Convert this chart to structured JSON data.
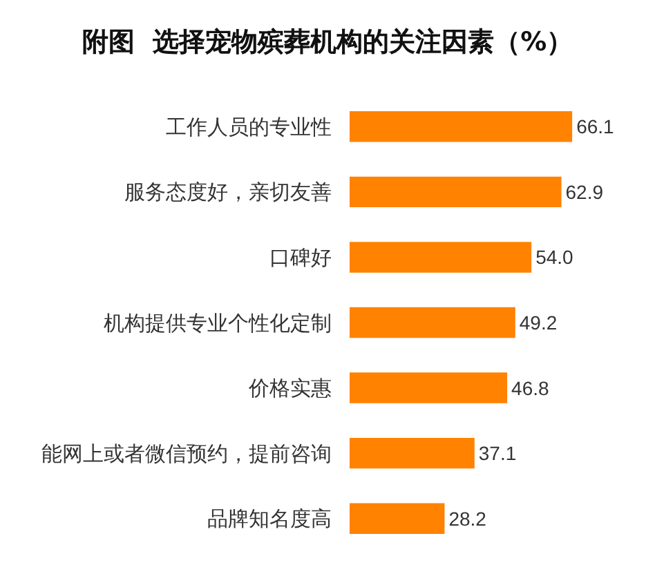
{
  "chart_data": {
    "type": "bar",
    "orientation": "horizontal",
    "title": "附图  选择宠物殡葬机构的关注因素（%）",
    "categories": [
      "工作人员的专业性",
      "服务态度好，亲切友善",
      "口碑好",
      "机构提供专业个性化定制",
      "价格实惠",
      "能网上或者微信预约，提前咨询",
      "品牌知名度高"
    ],
    "values": [
      66.1,
      62.9,
      54.0,
      49.2,
      46.8,
      37.1,
      28.2
    ],
    "value_labels": [
      "66.1",
      "62.9",
      "54.0",
      "49.2",
      "46.8",
      "37.1",
      "28.2"
    ],
    "color": "#ff8200",
    "tick_labels": "y"
  }
}
